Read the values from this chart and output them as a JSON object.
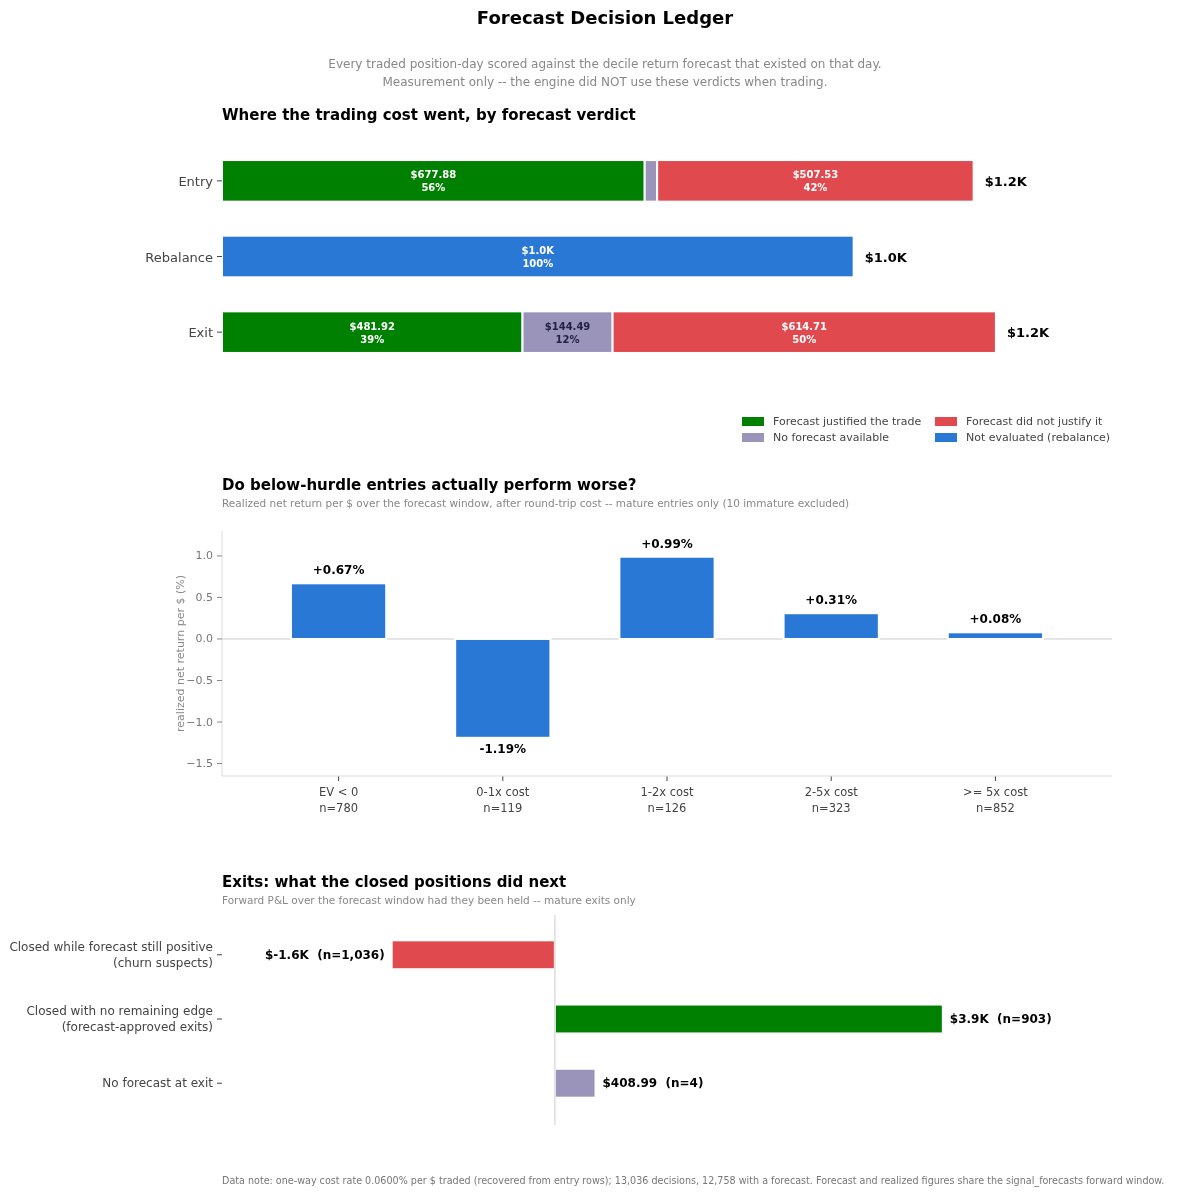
{
  "chart_data": [
    {
      "type": "bar",
      "orientation": "horizontal",
      "stacked": true,
      "title": "Where the trading cost went, by forecast verdict",
      "annotations": [
        "Forecast Decision Ledger",
        "Every traded position-day scored against the decile return forecast that existed on that day.",
        "Measurement only -- the engine did NOT use these verdicts when trading."
      ],
      "categories": [
        "Entry",
        "Rebalance",
        "Exit"
      ],
      "tick_labels": "y",
      "legend": "bottom right",
      "series": [
        {
          "name": "Forecast justified the trade",
          "color": "#008000",
          "values": [
            677.88,
            null,
            481.92
          ],
          "value_labels": [
            "$677.88\n56%",
            null,
            "$481.92\n39%"
          ]
        },
        {
          "name": "No forecast available",
          "color": "#9a94bb",
          "values": [
            20,
            null,
            144.49
          ],
          "value_labels": [
            null,
            null,
            "$144.49\n12%"
          ]
        },
        {
          "name": "Forecast did not justify it",
          "color": "#e0494d",
          "values": [
            507.53,
            null,
            614.71
          ],
          "value_labels": [
            "$507.53\n42%",
            null,
            "$614.71\n50%"
          ]
        },
        {
          "name": "Not evaluated (rebalance)",
          "color": "#2a78d6",
          "values": [
            null,
            1013,
            null
          ],
          "value_labels": [
            null,
            "$1.0K\n100%",
            null
          ]
        }
      ],
      "totals": [
        "$1.2K",
        "$1.0K",
        "$1.2K"
      ]
    },
    {
      "type": "bar",
      "title": "Do below-hurdle entries actually perform worse?",
      "subtitle": "Realized net return per $ over the forecast window, after round-trip cost -- mature entries only (10 immature excluded)",
      "ylabel": "realized net return per $ (%)",
      "categories": [
        "EV < 0\nn=780",
        "0-1x cost\nn=119",
        "1-2x cost\nn=126",
        "2-5x cost\nn=323",
        ">= 5x cost\nn=852"
      ],
      "values": [
        0.67,
        -1.19,
        0.99,
        0.31,
        0.08
      ],
      "color": "#2a78d6",
      "value_labels": [
        "+0.67%",
        "-1.19%",
        "+0.99%",
        "+0.31%",
        "+0.08%"
      ],
      "ylim": [
        -1.65,
        1.3
      ],
      "yticks": [
        {
          "value": 1,
          "label": "1.0"
        },
        {
          "value": 0.5,
          "label": "0.5"
        },
        {
          "value": 0,
          "label": "0.0"
        },
        {
          "value": -0.5,
          "label": "−0.5"
        },
        {
          "value": -1,
          "label": "−1.0"
        },
        {
          "value": -1.5,
          "label": "−1.5"
        }
      ],
      "ref_lines": [
        {
          "axis": "y",
          "value": 0,
          "color": "#dddddd"
        }
      ]
    },
    {
      "type": "bar",
      "orientation": "horizontal",
      "title": "Exits: what the closed positions did next",
      "subtitle": "Forward P&L over the forecast window had they been held -- mature exits only",
      "categories": [
        "Closed while forecast still positive\n(churn suspects)",
        "Closed with no remaining edge\n(forecast-approved exits)",
        "No forecast at exit"
      ],
      "values": [
        -1640,
        3900,
        408.99
      ],
      "colors": [
        "#e0494d",
        "#008000",
        "#9a94bb"
      ],
      "value_labels": [
        "$-1.6K  (n=1,036)",
        "$3.9K  (n=903)",
        "$408.99  (n=4)"
      ],
      "tick_labels": "y",
      "ref_lines": [
        {
          "axis": "x",
          "value": 0,
          "color": "#dddddd"
        }
      ],
      "annotations": [
        "Data note: one-way cost rate 0.0600% per $ traded (recovered from entry rows); 13,036 decisions, 12,758 with a forecast. Forecast and realized figures share the signal_forecasts forward window."
      ]
    }
  ]
}
